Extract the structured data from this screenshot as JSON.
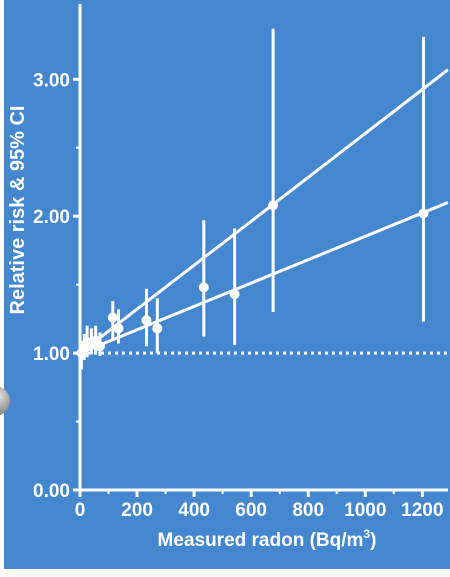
{
  "chart_data": {
    "type": "scatter",
    "title": "",
    "xlabel": "Measured radon (Bq/m",
    "xlabel_sup": "3",
    "xlabel_suffix": ")",
    "ylabel": "Relative risk & 95% CI",
    "xlim": [
      0,
      1290
    ],
    "ylim": [
      0,
      3.55
    ],
    "x_ticks": [
      0,
      200,
      400,
      600,
      800,
      1000,
      1200
    ],
    "x_tick_labels": [
      "0",
      "200",
      "400",
      "600",
      "800",
      "1000",
      "1200"
    ],
    "y_ticks": [
      0,
      1,
      2,
      3
    ],
    "y_tick_labels": [
      "0.00",
      "1.00",
      "2.00",
      "3.00"
    ],
    "x_minor_ticks": [
      100,
      300,
      500,
      700,
      900,
      1100
    ],
    "y_minor_ticks": [
      0.5,
      1.5,
      2.5
    ],
    "reference_line": {
      "y": 1.0,
      "style": "dotted"
    },
    "points": [
      {
        "x": 5,
        "y": 1.0,
        "low": 0.88,
        "high": 1.09
      },
      {
        "x": 15,
        "y": 1.04,
        "low": 0.95,
        "high": 1.14
      },
      {
        "x": 25,
        "y": 1.06,
        "low": 0.97,
        "high": 1.2
      },
      {
        "x": 40,
        "y": 1.08,
        "low": 0.99,
        "high": 1.18
      },
      {
        "x": 55,
        "y": 1.09,
        "low": 1.0,
        "high": 1.2
      },
      {
        "x": 70,
        "y": 1.05,
        "low": 0.98,
        "high": 1.15
      },
      {
        "x": 115,
        "y": 1.26,
        "low": 1.1,
        "high": 1.38
      },
      {
        "x": 135,
        "y": 1.18,
        "low": 1.07,
        "high": 1.32
      },
      {
        "x": 233,
        "y": 1.24,
        "low": 1.05,
        "high": 1.47
      },
      {
        "x": 271,
        "y": 1.18,
        "low": 1.0,
        "high": 1.4
      },
      {
        "x": 434,
        "y": 1.48,
        "low": 1.12,
        "high": 1.97
      },
      {
        "x": 542,
        "y": 1.43,
        "low": 1.06,
        "high": 1.91
      },
      {
        "x": 677,
        "y": 2.08,
        "low": 1.3,
        "high": 3.37
      },
      {
        "x": 1204,
        "y": 2.02,
        "low": 1.23,
        "high": 3.31
      }
    ],
    "series": [
      {
        "values": [
          [
            0,
            1.0
          ],
          [
            1290,
            3.07
          ]
        ]
      },
      {
        "values": [
          [
            0,
            1.0
          ],
          [
            1290,
            2.1
          ]
        ]
      }
    ],
    "grid": false,
    "legend": "none",
    "colors": {
      "background": "#4487cf",
      "foreground": "#ffffff"
    }
  }
}
